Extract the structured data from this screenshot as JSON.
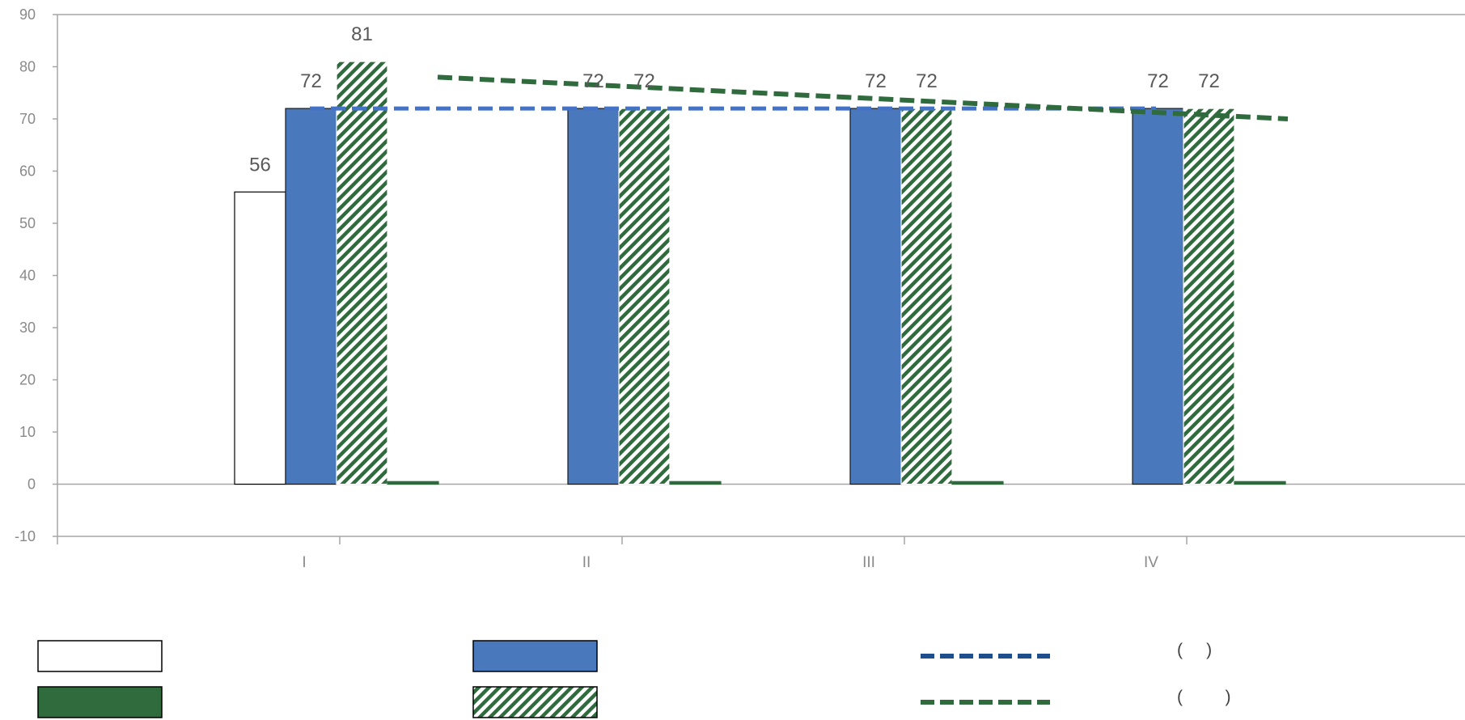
{
  "chart_data": {
    "type": "bar",
    "ylim": [
      -10,
      90
    ],
    "yticks": [
      -10,
      0,
      10,
      20,
      30,
      40,
      50,
      60,
      70,
      80,
      90
    ],
    "categories": [
      "I",
      "II",
      "III",
      "IV"
    ],
    "grid": false,
    "legend_position": "bottom",
    "series": [
      {
        "kind": "bar",
        "fill": "#ffffff",
        "stroke": "#000000",
        "pattern": "none",
        "values": [
          56,
          null,
          null,
          null
        ],
        "labels": [
          "56",
          "",
          "",
          ""
        ]
      },
      {
        "kind": "bar",
        "fill": "#4a78bd",
        "stroke": "#1a1a1a",
        "pattern": "none",
        "values": [
          72,
          72,
          72,
          72
        ],
        "labels": [
          "72",
          "72",
          "72",
          "72"
        ]
      },
      {
        "kind": "bar",
        "fill": "#2f6b3d",
        "stroke": "#ffffff",
        "pattern": "hatch",
        "values": [
          81,
          72,
          72,
          72
        ],
        "labels": [
          "81",
          "72",
          "72",
          "72"
        ]
      },
      {
        "kind": "bar",
        "fill": "#2f6b3d",
        "stroke": "#2f6b3d",
        "pattern": "none",
        "values": [
          0.5,
          0.5,
          0.5,
          0.5
        ],
        "labels": [
          "",
          "",
          "",
          ""
        ]
      }
    ],
    "lines": [
      {
        "color": "#4472c4",
        "dash": "dashed",
        "x_range": [
          "I",
          "IV"
        ],
        "values": [
          72,
          72
        ]
      },
      {
        "color": "#2f6b3d",
        "dash": "dashed",
        "x_range": [
          "I",
          "IV"
        ],
        "values": [
          78,
          70
        ]
      }
    ],
    "legend": [
      {
        "swatch": "box",
        "fill": "#ffffff",
        "pattern": "none",
        "text": ""
      },
      {
        "swatch": "box",
        "fill": "#4a78bd",
        "pattern": "none",
        "text": ""
      },
      {
        "swatch": "line",
        "color": "#1f4e8c",
        "text": "(     )"
      },
      {
        "swatch": "box",
        "fill": "#2f6b3d",
        "pattern": "none",
        "text": ""
      },
      {
        "swatch": "box",
        "fill": "#2f6b3d",
        "pattern": "hatch",
        "text": ""
      },
      {
        "swatch": "line",
        "color": "#2f6b3d",
        "text": "(         )"
      }
    ]
  }
}
